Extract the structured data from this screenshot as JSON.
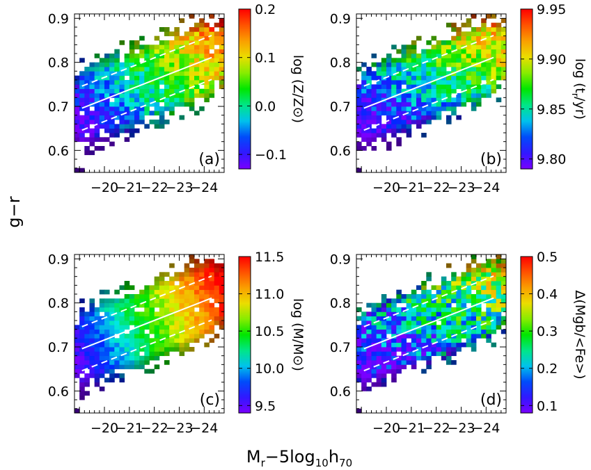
{
  "figure": {
    "ylabel": "g−r",
    "xlabel_main": "M",
    "xlabel_sub1": "r",
    "xlabel_mid": "−5log",
    "xlabel_sub2": "10",
    "xlabel_h": "h",
    "xlabel_sub3": "70"
  },
  "chart_data": [
    {
      "type": "heatmap",
      "panel_label": "(a)",
      "xlim": [
        -18.8,
        -24.8
      ],
      "ylim": [
        0.55,
        0.91
      ],
      "xticks": [
        -20,
        -21,
        -22,
        -23,
        -24
      ],
      "xtick_labels": [
        "−20",
        "−21",
        "−22",
        "−23",
        "−24"
      ],
      "yticks": [
        0.6,
        0.7,
        0.8,
        0.9
      ],
      "ytick_labels": [
        "0.6",
        "0.7",
        "0.8",
        "0.9"
      ],
      "fit_line": {
        "x": [
          -19.1,
          -24.3
        ],
        "y": [
          0.696,
          0.811
        ]
      },
      "fit_scatter": 0.05,
      "colorbar": {
        "label": "log (Z/Z⊙)",
        "range": [
          -0.13,
          0.2
        ],
        "ticks": [
          -0.1,
          0.0,
          0.1,
          0.2
        ],
        "tick_labels": [
          "−0.1",
          "0.0",
          "0.1",
          "0.2"
        ]
      },
      "trend": {
        "color_vs_Mr": 0.9,
        "color_vs_gr": 0.55,
        "noise": 0.12
      }
    },
    {
      "type": "heatmap",
      "panel_label": "(b)",
      "xlim": [
        -18.8,
        -24.8
      ],
      "ylim": [
        0.55,
        0.91
      ],
      "xticks": [
        -20,
        -21,
        -22,
        -23,
        -24
      ],
      "xtick_labels": [
        "−20",
        "−21",
        "−22",
        "−23",
        "−24"
      ],
      "yticks": [
        0.6,
        0.7,
        0.8,
        0.9
      ],
      "ytick_labels": [
        "0.6",
        "0.7",
        "0.8",
        "0.9"
      ],
      "fit_line": {
        "x": [
          -19.1,
          -24.3
        ],
        "y": [
          0.696,
          0.811
        ]
      },
      "fit_scatter": 0.05,
      "colorbar": {
        "label": "log (tₑ/yr)",
        "label_main": "log (t",
        "label_sub": "r",
        "label_end": "/yr)",
        "range": [
          9.79,
          9.95
        ],
        "ticks": [
          9.8,
          9.85,
          9.9,
          9.95
        ],
        "tick_labels": [
          "9.80",
          "9.85",
          "9.90",
          "9.95"
        ]
      },
      "trend": {
        "color_vs_Mr": 0.75,
        "color_vs_gr": 0.75,
        "noise": 0.15
      }
    },
    {
      "type": "heatmap",
      "panel_label": "(c)",
      "xlim": [
        -18.8,
        -24.8
      ],
      "ylim": [
        0.55,
        0.91
      ],
      "xticks": [
        -20,
        -21,
        -22,
        -23,
        -24
      ],
      "xtick_labels": [
        "−20",
        "−21",
        "−22",
        "−23",
        "−24"
      ],
      "yticks": [
        0.6,
        0.7,
        0.8,
        0.9
      ],
      "ytick_labels": [
        "0.6",
        "0.7",
        "0.8",
        "0.9"
      ],
      "fit_line": {
        "x": [
          -19.1,
          -24.3
        ],
        "y": [
          0.696,
          0.811
        ]
      },
      "fit_scatter": 0.05,
      "colorbar": {
        "label": "log (M/M⊙)",
        "range": [
          9.4,
          11.5
        ],
        "ticks": [
          9.5,
          10.0,
          10.5,
          11.0,
          11.5
        ],
        "tick_labels": [
          "9.5",
          "10.0",
          "10.5",
          "11.0",
          "11.5"
        ]
      },
      "trend": {
        "color_vs_Mr": 1.1,
        "color_vs_gr": 0.35,
        "noise": 0.06
      }
    },
    {
      "type": "heatmap",
      "panel_label": "(d)",
      "xlim": [
        -18.8,
        -24.8
      ],
      "ylim": [
        0.55,
        0.91
      ],
      "xticks": [
        -20,
        -21,
        -22,
        -23,
        -24
      ],
      "xtick_labels": [
        "−20",
        "−21",
        "−22",
        "−23",
        "−24"
      ],
      "yticks": [
        0.6,
        0.7,
        0.8,
        0.9
      ],
      "ytick_labels": [
        "0.6",
        "0.7",
        "0.8",
        "0.9"
      ],
      "fit_line": {
        "x": [
          -19.1,
          -24.3
        ],
        "y": [
          0.696,
          0.811
        ]
      },
      "fit_scatter": 0.05,
      "colorbar": {
        "label": "Δ(Mgb/<Fe>)",
        "range": [
          0.08,
          0.5
        ],
        "ticks": [
          0.1,
          0.2,
          0.3,
          0.4,
          0.5
        ],
        "tick_labels": [
          "0.1",
          "0.2",
          "0.3",
          "0.4",
          "0.5"
        ]
      },
      "trend": {
        "color_vs_Mr": 0.6,
        "color_vs_gr": 0.6,
        "noise": 0.22
      }
    }
  ]
}
